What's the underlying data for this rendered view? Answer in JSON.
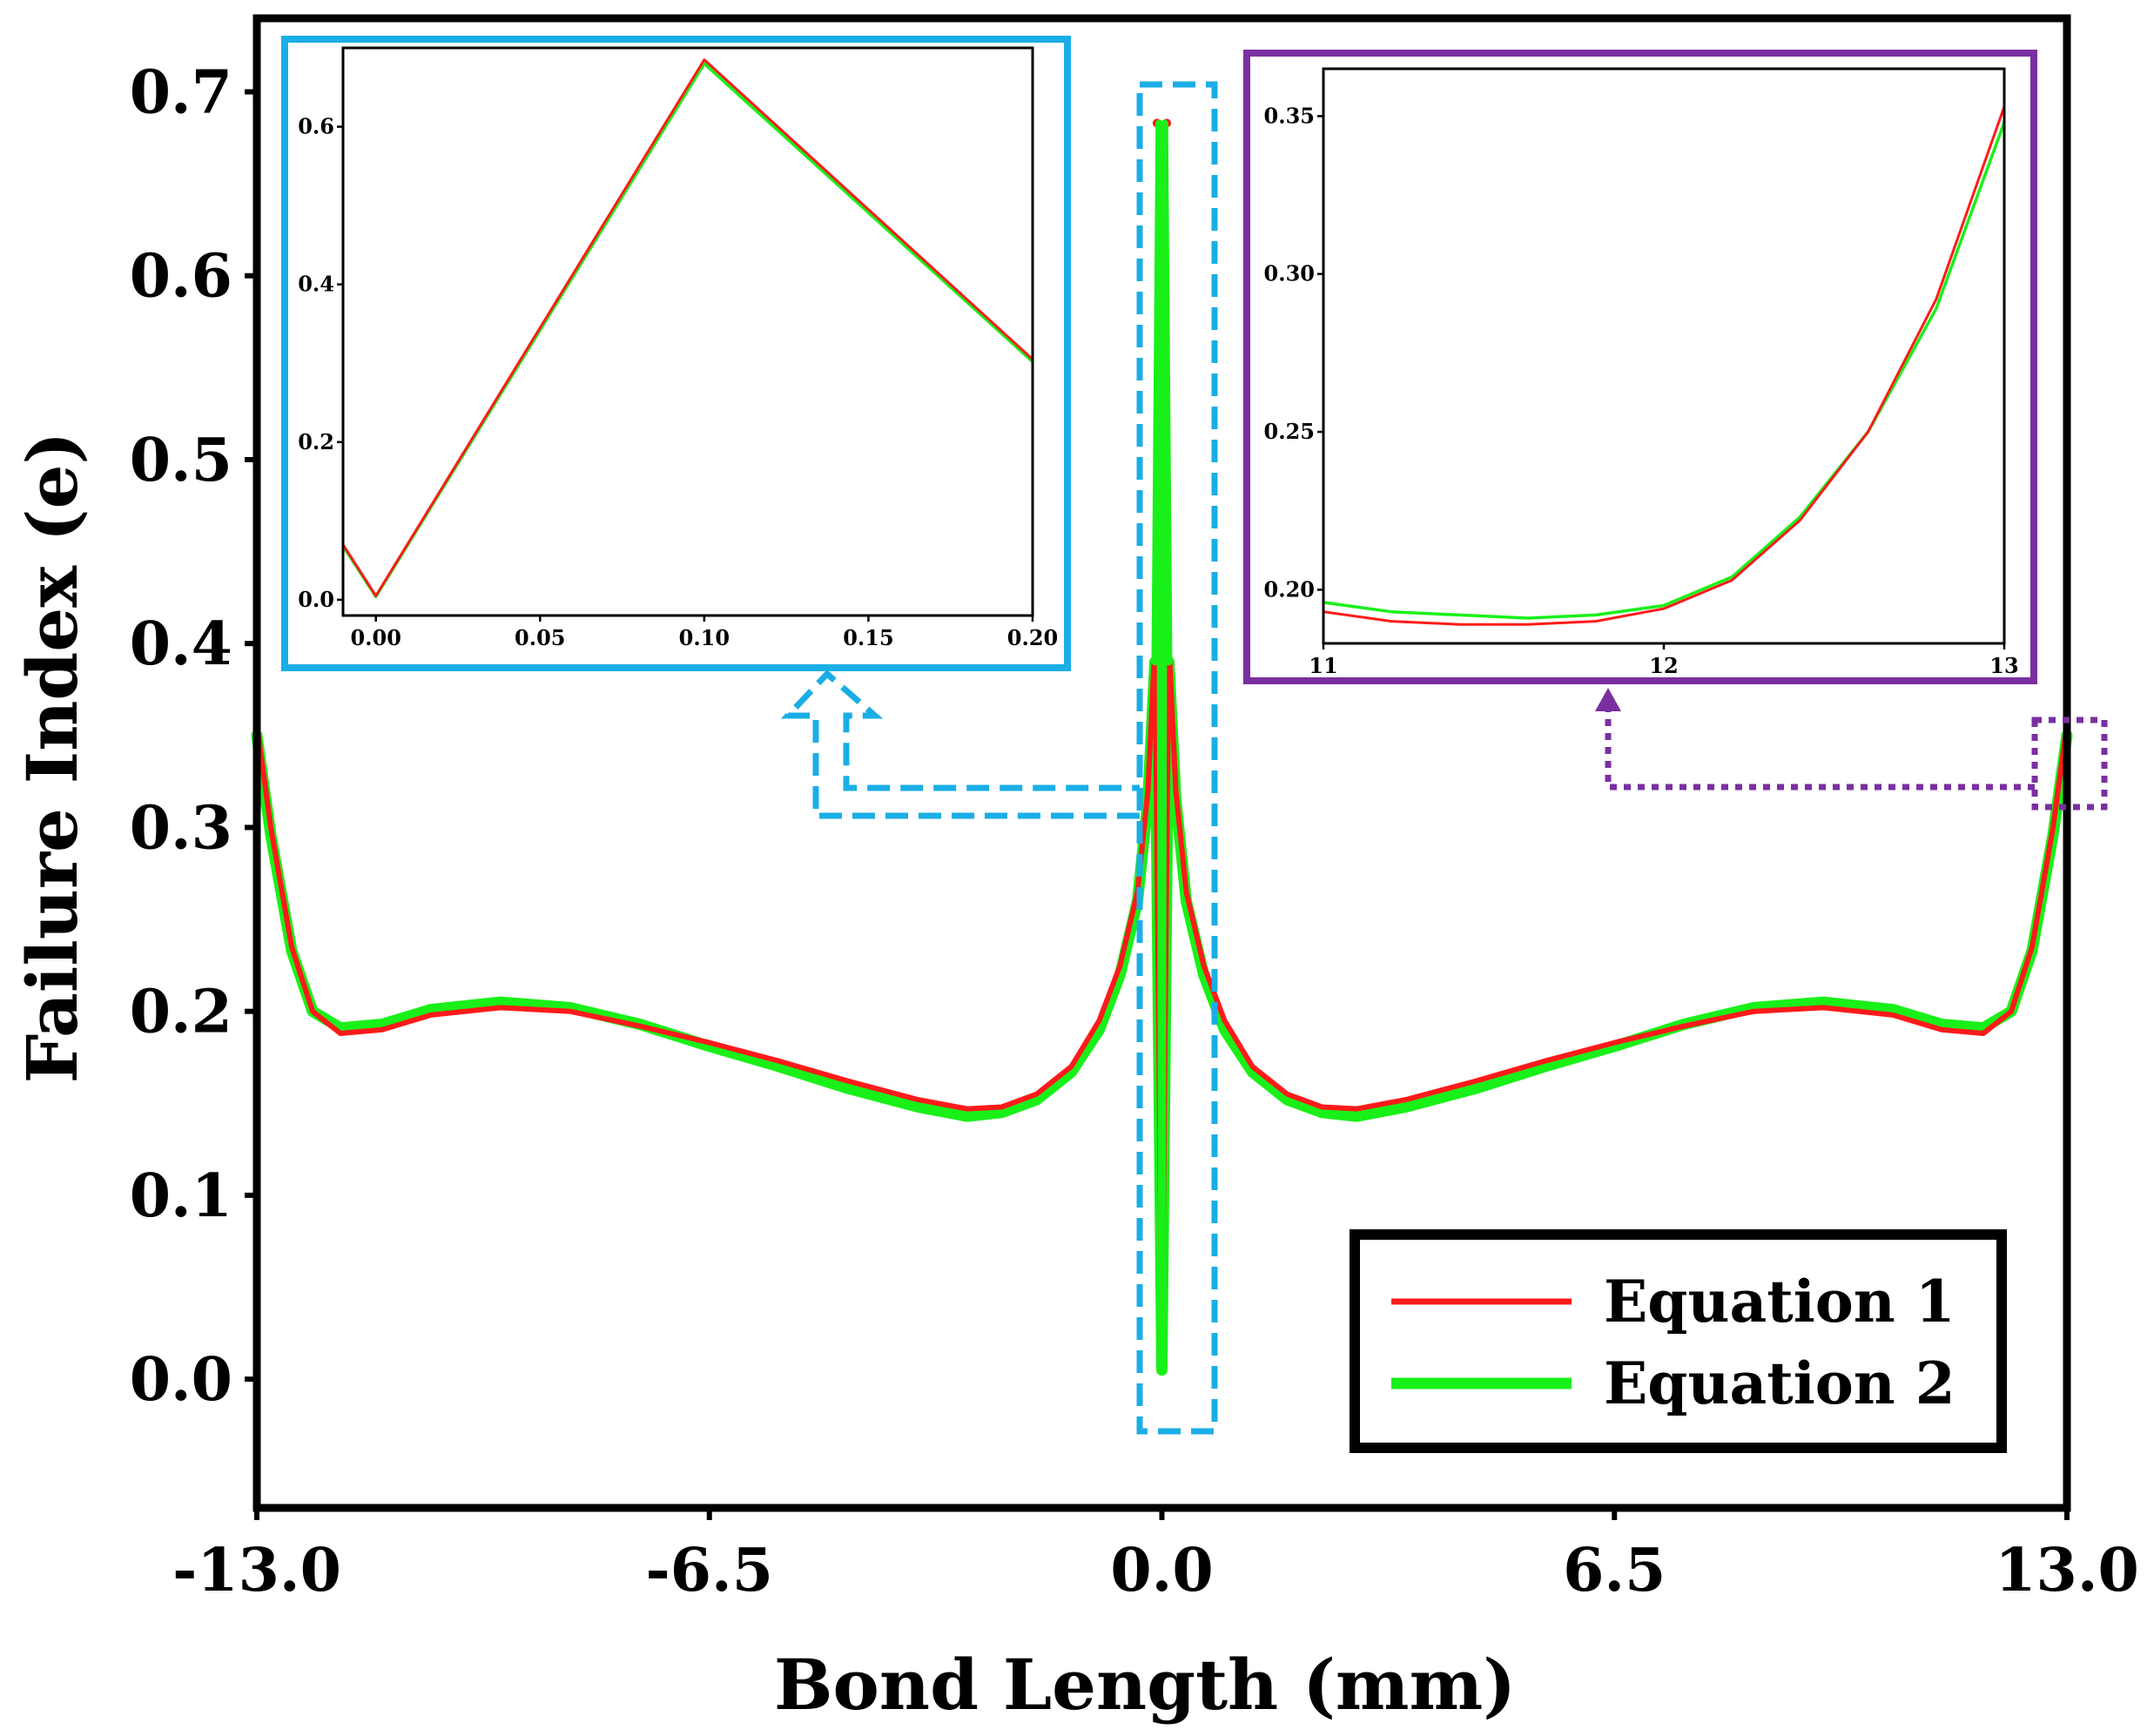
{
  "colors": {
    "equation1": "#ff1a1a",
    "equation2": "#19f019",
    "left_inset_frame": "#1aaee6",
    "right_inset_frame": "#7a2fa0",
    "axes": "#000000"
  },
  "chart_data": [
    {
      "id": "main",
      "type": "line",
      "title": "",
      "xlabel": "Bond Length (mm)",
      "ylabel": "Failure Index (e)",
      "xlim": [
        -13,
        13
      ],
      "ylim": [
        -0.07,
        0.74
      ],
      "xticks": [
        -13.0,
        -6.5,
        0.0,
        6.5,
        13.0
      ],
      "xtick_labels": [
        "-13.0",
        "-6.5",
        "0.0",
        "6.5",
        "13.0"
      ],
      "yticks": [
        0.0,
        0.1,
        0.2,
        0.3,
        0.4,
        0.5,
        0.6,
        0.7
      ],
      "ytick_labels": [
        "0.0",
        "0.1",
        "0.2",
        "0.3",
        "0.4",
        "0.5",
        "0.6",
        "0.7"
      ],
      "legend_placement": "bottom-right",
      "series": [
        {
          "name": "Equation 1",
          "color": "#ff1a1a",
          "x": [
            -13.0,
            -12.8,
            -12.5,
            -12.2,
            -11.8,
            -11.2,
            -10.5,
            -9.5,
            -8.5,
            -7.5,
            -6.5,
            -5.5,
            -4.5,
            -3.5,
            -2.8,
            -2.3,
            -1.8,
            -1.3,
            -0.9,
            -0.6,
            -0.35,
            -0.2,
            -0.1,
            0.0,
            0.1,
            0.2,
            0.35,
            0.6,
            0.9,
            1.3,
            1.8,
            2.3,
            2.8,
            3.5,
            4.5,
            5.5,
            6.5,
            7.5,
            8.5,
            9.5,
            10.5,
            11.2,
            11.8,
            12.2,
            12.5,
            12.8,
            13.0
          ],
          "y": [
            0.356,
            0.3,
            0.235,
            0.2,
            0.188,
            0.19,
            0.198,
            0.202,
            0.2,
            0.192,
            0.183,
            0.173,
            0.162,
            0.152,
            0.147,
            0.148,
            0.155,
            0.17,
            0.195,
            0.225,
            0.265,
            0.32,
            0.4,
            0.012,
            0.4,
            0.32,
            0.265,
            0.225,
            0.195,
            0.17,
            0.155,
            0.148,
            0.147,
            0.152,
            0.162,
            0.173,
            0.183,
            0.192,
            0.2,
            0.202,
            0.198,
            0.19,
            0.188,
            0.2,
            0.235,
            0.3,
            0.356
          ]
        },
        {
          "name": "Equation 2",
          "color": "#19f019",
          "x": [
            -13.0,
            -12.8,
            -12.5,
            -12.2,
            -11.8,
            -11.2,
            -10.5,
            -9.5,
            -8.5,
            -7.5,
            -6.5,
            -5.5,
            -4.5,
            -3.5,
            -2.8,
            -2.3,
            -1.8,
            -1.3,
            -0.9,
            -0.6,
            -0.35,
            -0.2,
            -0.1,
            0.0,
            0.1,
            0.2,
            0.35,
            0.6,
            0.9,
            1.3,
            1.8,
            2.3,
            2.8,
            3.5,
            4.5,
            5.5,
            6.5,
            7.5,
            8.5,
            9.5,
            10.5,
            11.2,
            11.8,
            12.2,
            12.5,
            12.8,
            13.0
          ],
          "y": [
            0.35,
            0.296,
            0.233,
            0.2,
            0.191,
            0.193,
            0.201,
            0.205,
            0.202,
            0.193,
            0.181,
            0.17,
            0.158,
            0.148,
            0.143,
            0.145,
            0.152,
            0.167,
            0.19,
            0.22,
            0.26,
            0.315,
            0.39,
            0.005,
            0.39,
            0.315,
            0.26,
            0.22,
            0.19,
            0.167,
            0.152,
            0.145,
            0.143,
            0.148,
            0.158,
            0.17,
            0.181,
            0.193,
            0.202,
            0.205,
            0.201,
            0.193,
            0.191,
            0.2,
            0.233,
            0.296,
            0.35
          ]
        }
      ]
    },
    {
      "id": "inset-left",
      "type": "line",
      "title": "",
      "xlabel": "",
      "ylabel": "",
      "xlim": [
        -0.01,
        0.2
      ],
      "ylim": [
        -0.02,
        0.7
      ],
      "xticks": [
        0.0,
        0.05,
        0.1,
        0.15,
        0.2
      ],
      "xtick_labels": [
        "0.00",
        "0.05",
        "0.10",
        "0.15",
        "0.20"
      ],
      "yticks": [
        0.0,
        0.2,
        0.4,
        0.6
      ],
      "ytick_labels": [
        "0.0",
        "0.2",
        "0.4",
        "0.6"
      ],
      "series": [
        {
          "name": "Equation 1",
          "color": "#ff1a1a",
          "x": [
            -0.01,
            0.0,
            0.1,
            0.2
          ],
          "y": [
            0.07,
            0.005,
            0.685,
            0.305
          ]
        },
        {
          "name": "Equation 2",
          "color": "#19f019",
          "x": [
            -0.01,
            0.0,
            0.1,
            0.2
          ],
          "y": [
            0.068,
            0.004,
            0.68,
            0.302
          ]
        }
      ]
    },
    {
      "id": "inset-right",
      "type": "line",
      "title": "",
      "xlabel": "",
      "ylabel": "",
      "xlim": [
        11,
        13
      ],
      "ylim": [
        0.183,
        0.365
      ],
      "xticks": [
        11,
        12,
        13
      ],
      "xtick_labels": [
        "11",
        "12",
        "13"
      ],
      "yticks": [
        0.2,
        0.25,
        0.3,
        0.35
      ],
      "ytick_labels": [
        "0.20",
        "0.25",
        "0.30",
        "0.35"
      ],
      "series": [
        {
          "name": "Equation 1",
          "color": "#ff1a1a",
          "x": [
            11.0,
            11.2,
            11.4,
            11.6,
            11.8,
            12.0,
            12.2,
            12.4,
            12.6,
            12.8,
            13.0
          ],
          "y": [
            0.193,
            0.19,
            0.189,
            0.189,
            0.19,
            0.194,
            0.203,
            0.222,
            0.25,
            0.292,
            0.353
          ]
        },
        {
          "name": "Equation 2",
          "color": "#19f019",
          "x": [
            11.0,
            11.2,
            11.4,
            11.6,
            11.8,
            12.0,
            12.2,
            12.4,
            12.6,
            12.8,
            13.0
          ],
          "y": [
            0.196,
            0.193,
            0.192,
            0.191,
            0.192,
            0.195,
            0.204,
            0.223,
            0.25,
            0.289,
            0.348
          ]
        }
      ]
    }
  ]
}
